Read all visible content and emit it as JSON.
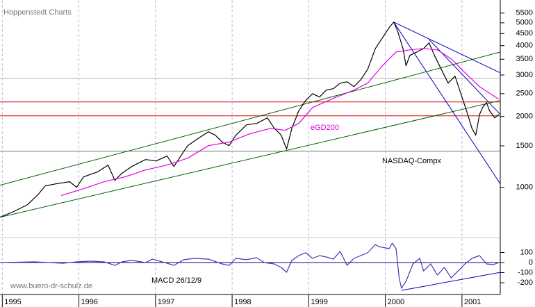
{
  "chart_data": [
    {
      "type": "line",
      "log_y": true,
      "source": "Hoppenstedt Charts",
      "xlim": [
        1994.97,
        2001.5
      ],
      "ylim": [
        620,
        6250
      ],
      "yticks": [
        1000,
        1500,
        2000,
        2500,
        3000,
        3500,
        4000,
        4500,
        5000,
        5500
      ],
      "series": [
        {
          "name": "NASDAQ-Compx",
          "color": "#000000",
          "x": [
            1994.97,
            1995.15,
            1995.33,
            1995.47,
            1995.56,
            1995.7,
            1995.88,
            1995.97,
            1996.06,
            1996.24,
            1996.38,
            1996.47,
            1996.56,
            1996.69,
            1996.87,
            1997.01,
            1997.15,
            1997.24,
            1997.33,
            1997.42,
            1997.55,
            1997.69,
            1997.78,
            1997.87,
            1997.96,
            1998.05,
            1998.19,
            1998.32,
            1998.46,
            1998.55,
            1998.64,
            1998.71,
            1998.78,
            1998.87,
            1998.96,
            1999.05,
            1999.14,
            1999.23,
            1999.32,
            1999.41,
            1999.5,
            1999.59,
            1999.68,
            1999.77,
            1999.87,
            1999.96,
            2000.05,
            2000.11,
            2000.16,
            2000.23,
            2000.27,
            2000.32,
            2000.41,
            2000.5,
            2000.57,
            2000.64,
            2000.73,
            2000.82,
            2000.91,
            2001.0,
            2001.06,
            2001.13,
            2001.18,
            2001.23,
            2001.27,
            2001.32,
            2001.36,
            2001.43,
            2001.48
          ],
          "values": [
            746,
            789,
            844,
            934,
            1014,
            1034,
            1056,
            1000,
            1107,
            1161,
            1243,
            1070,
            1146,
            1226,
            1312,
            1294,
            1358,
            1226,
            1358,
            1503,
            1609,
            1722,
            1665,
            1556,
            1503,
            1665,
            1843,
            1868,
            1972,
            1782,
            1665,
            1453,
            1782,
            2112,
            2338,
            2500,
            2418,
            2588,
            2624,
            2770,
            2806,
            2679,
            2866,
            3174,
            3890,
            4306,
            4770,
            5035,
            4611,
            3890,
            3282,
            3636,
            3758,
            3890,
            4108,
            3636,
            3174,
            2770,
            2965,
            2418,
            2112,
            1782,
            1665,
            2041,
            2183,
            2290,
            2112,
            1972,
            2041
          ]
        },
        {
          "name": "eGD200",
          "color": "#e000e0",
          "x": [
            1995.77,
            1996.06,
            1996.33,
            1996.6,
            1996.87,
            1997.15,
            1997.42,
            1997.69,
            1997.96,
            1998.23,
            1998.51,
            1998.69,
            1998.87,
            1999.05,
            1999.32,
            1999.59,
            1999.77,
            1999.96,
            2000.14,
            2000.32,
            2000.5,
            2000.68,
            2000.86,
            2001.04,
            2001.23,
            2001.41,
            2001.48
          ],
          "values": [
            922,
            986,
            1056,
            1107,
            1185,
            1243,
            1330,
            1503,
            1556,
            1687,
            1782,
            1745,
            1868,
            2183,
            2386,
            2588,
            2770,
            3282,
            3758,
            3837,
            3890,
            3837,
            3515,
            3067,
            2679,
            2450,
            2370
          ]
        }
      ],
      "hlines": [
        {
          "value": 2305,
          "color": "#e00000"
        },
        {
          "value": 2013,
          "color": "#e00000"
        },
        {
          "value": 2904,
          "color": "#b0b0b0"
        },
        {
          "value": 1424,
          "color": "#707070"
        }
      ],
      "trendlines": [
        {
          "color": "#006000",
          "x": [
            1994.97,
            2001.5
          ],
          "values": [
            1021,
            3758
          ]
        },
        {
          "color": "#006000",
          "x": [
            1994.97,
            2001.5
          ],
          "values": [
            746,
            2338
          ]
        },
        {
          "color": "#0000c0",
          "x": [
            2000.11,
            2001.5
          ],
          "values": [
            5035,
            3067
          ]
        },
        {
          "color": "#0000c0",
          "x": [
            2000.57,
            2001.5
          ],
          "values": [
            4248,
            2041
          ]
        },
        {
          "color": "#0000c0",
          "x": [
            2000.11,
            2001.5
          ],
          "values": [
            5035,
            1034
          ]
        }
      ]
    },
    {
      "type": "line",
      "footer": "www.buero-dr-schulz.de",
      "xlim": [
        1994.97,
        2001.5
      ],
      "xticks": [
        1995,
        1996,
        1997,
        1998,
        1999,
        2000,
        2001
      ],
      "grid": "x",
      "ylim": [
        -303,
        241
      ],
      "yticks": [
        100,
        0,
        -100,
        -200
      ],
      "series": [
        {
          "name": "MACD 26/12/9",
          "color": "#5030b0",
          "x": [
            1994.97,
            1995.42,
            1995.79,
            1995.97,
            1996.15,
            1996.33,
            1996.47,
            1996.56,
            1996.69,
            1996.87,
            1996.96,
            1997.15,
            1997.24,
            1997.37,
            1997.51,
            1997.69,
            1997.87,
            1997.96,
            1998.05,
            1998.19,
            1998.32,
            1998.42,
            1998.55,
            1998.64,
            1998.71,
            1998.78,
            1998.87,
            1998.96,
            1999.05,
            1999.14,
            1999.23,
            1999.32,
            1999.41,
            1999.5,
            1999.59,
            1999.68,
            1999.77,
            1999.87,
            1999.91,
            2000.05,
            2000.09,
            2000.14,
            2000.18,
            2000.21,
            2000.27,
            2000.36,
            2000.45,
            2000.5,
            2000.59,
            2000.68,
            2000.77,
            2000.86,
            2000.95,
            2001.04,
            2001.13,
            2001.23,
            2001.32,
            2001.41,
            2001.48
          ],
          "values": [
            0,
            7,
            -7,
            7,
            14,
            7,
            -28,
            7,
            21,
            0,
            34,
            -7,
            -28,
            28,
            41,
            34,
            -14,
            -28,
            41,
            28,
            48,
            0,
            -14,
            -48,
            -97,
            21,
            69,
            97,
            41,
            69,
            55,
            34,
            110,
            -28,
            41,
            69,
            97,
            179,
            159,
            138,
            193,
            138,
            -152,
            -255,
            -186,
            -14,
            41,
            -83,
            -14,
            -124,
            -48,
            -152,
            -83,
            -14,
            41,
            69,
            -14,
            -21,
            0
          ]
        }
      ],
      "hlines": [
        {
          "value": 0,
          "color": "#000080"
        }
      ],
      "trendlines": [
        {
          "color": "#0000c0",
          "x": [
            2000.21,
            2001.5
          ],
          "values": [
            -276,
            -97
          ]
        }
      ]
    }
  ]
}
